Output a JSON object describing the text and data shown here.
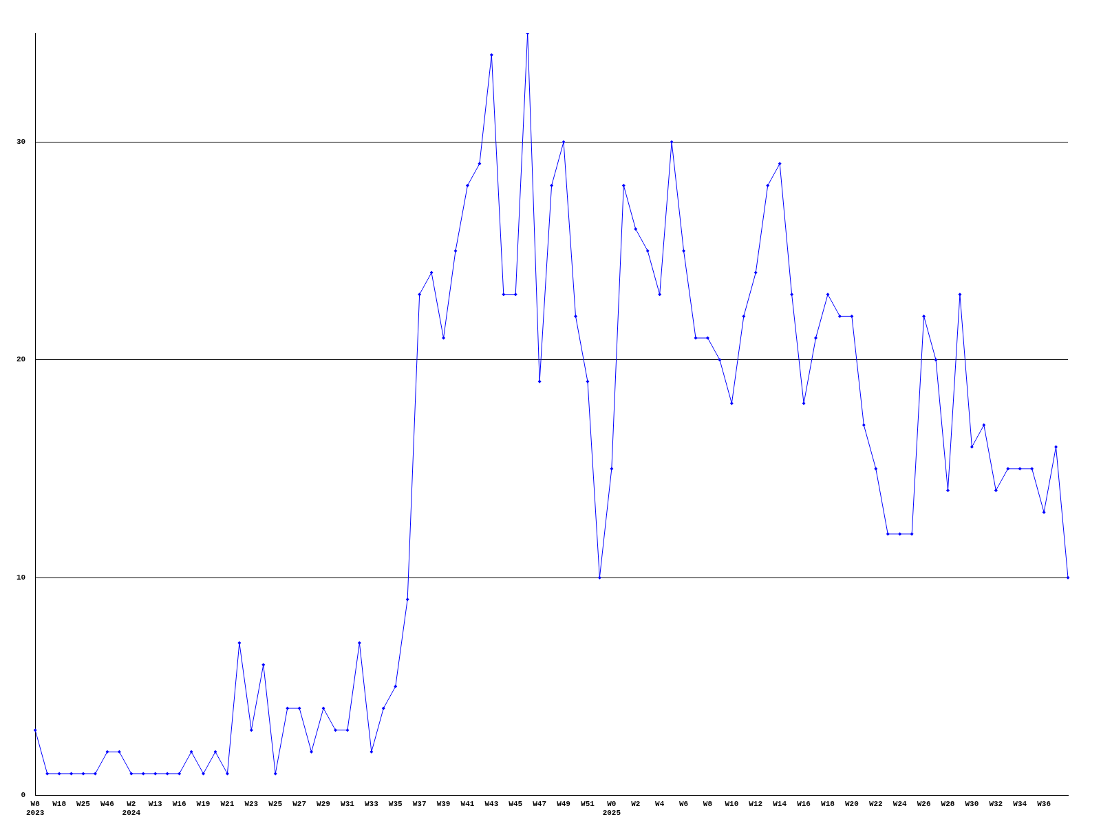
{
  "chart_data": {
    "type": "line",
    "categories": [
      "W8\n2023",
      null,
      "W18",
      null,
      "W25",
      null,
      "W46",
      null,
      "W2\n2024",
      null,
      "W13",
      null,
      "W16",
      null,
      "W19",
      null,
      "W21",
      null,
      "W23",
      null,
      "W25",
      null,
      "W27",
      null,
      "W29",
      null,
      "W31",
      null,
      "W33",
      null,
      "W35",
      null,
      "W37",
      null,
      "W39",
      null,
      "W41",
      null,
      "W43",
      null,
      "W45",
      null,
      "W47",
      null,
      "W49",
      null,
      "W51",
      null,
      "W0\n2025",
      null,
      "W2",
      null,
      "W4",
      null,
      "W6",
      null,
      "W8",
      null,
      "W10",
      null,
      "W12",
      null,
      "W14",
      null,
      "W16",
      null,
      "W18",
      null,
      "W20",
      null,
      "W22",
      null,
      "W24",
      null,
      "W26",
      null,
      "W28",
      null,
      "W30",
      null,
      "W32",
      null,
      "W34",
      null,
      "W36",
      null,
      null
    ],
    "series": [
      {
        "color": "#0000ff",
        "values": [
          3,
          1,
          1,
          1,
          1,
          1,
          2,
          2,
          1,
          1,
          1,
          1,
          1,
          2,
          1,
          2,
          1,
          7,
          3,
          6,
          1,
          4,
          4,
          2,
          4,
          3,
          3,
          7,
          2,
          4,
          5,
          9,
          23,
          24,
          21,
          25,
          28,
          29,
          34,
          23,
          23,
          35,
          19,
          28,
          30,
          22,
          19,
          10,
          15,
          28,
          26,
          25,
          23,
          30,
          25,
          21,
          21,
          20,
          18,
          22,
          24,
          28,
          29,
          23,
          18,
          21,
          23,
          22,
          22,
          17,
          15,
          12,
          12,
          12,
          22,
          20,
          14,
          23,
          16,
          17,
          14,
          15,
          15,
          15,
          13,
          16,
          10
        ]
      }
    ],
    "ylim": [
      0,
      35
    ],
    "yticks": [
      0,
      10,
      20,
      30
    ],
    "grid": "y",
    "marker": "diamond",
    "line_style": "solid",
    "legend": false
  }
}
